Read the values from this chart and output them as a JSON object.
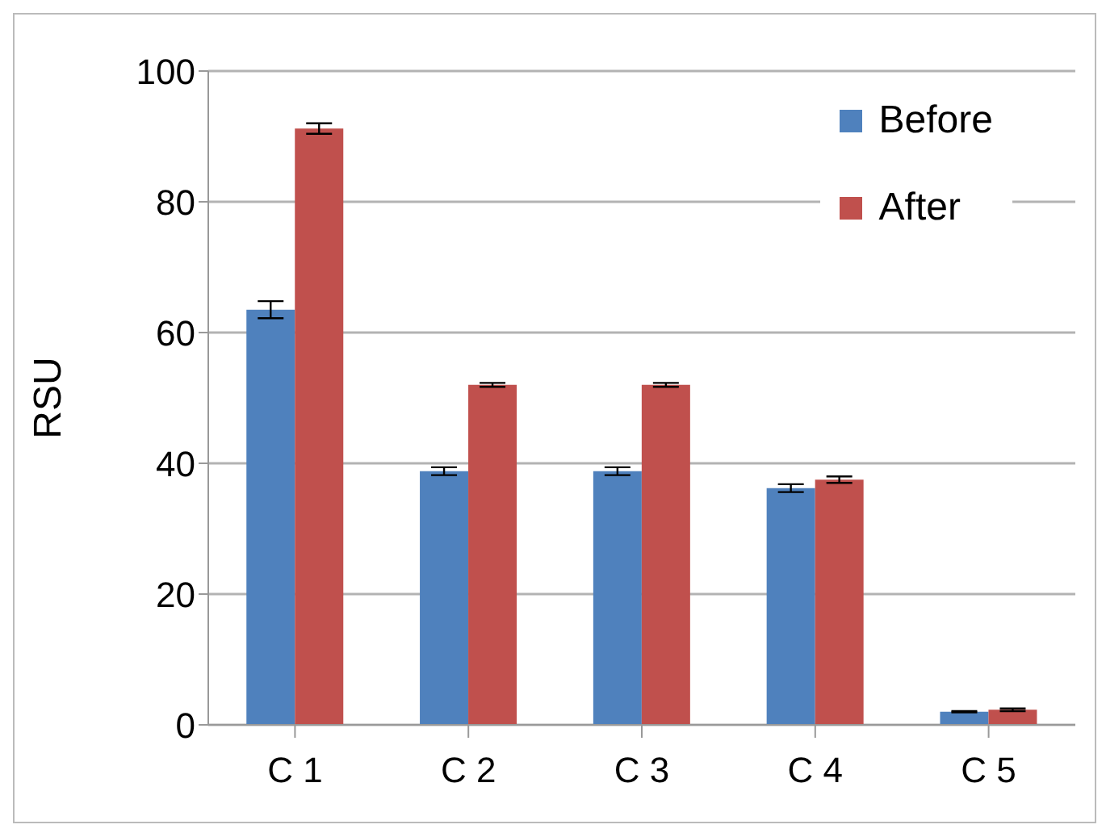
{
  "chart_data": {
    "type": "bar",
    "ylabel": "RSU",
    "categories": [
      "C 1",
      "C 2",
      "C 3",
      "C 4",
      "C 5"
    ],
    "series": [
      {
        "name": "Before",
        "color": "#4f81bd",
        "values": [
          63.5,
          38.8,
          38.8,
          36.2,
          2.0
        ],
        "errors": [
          1.3,
          0.6,
          0.6,
          0.6,
          0.1
        ]
      },
      {
        "name": "After",
        "color": "#c0504d",
        "values": [
          91.2,
          52.0,
          52.0,
          37.5,
          2.3
        ],
        "errors": [
          0.8,
          0.3,
          0.3,
          0.5,
          0.2
        ]
      }
    ],
    "ylim": [
      0,
      100
    ],
    "yticks": [
      0,
      20,
      40,
      60,
      80,
      100
    ],
    "grid": "y",
    "legend": "top right"
  }
}
